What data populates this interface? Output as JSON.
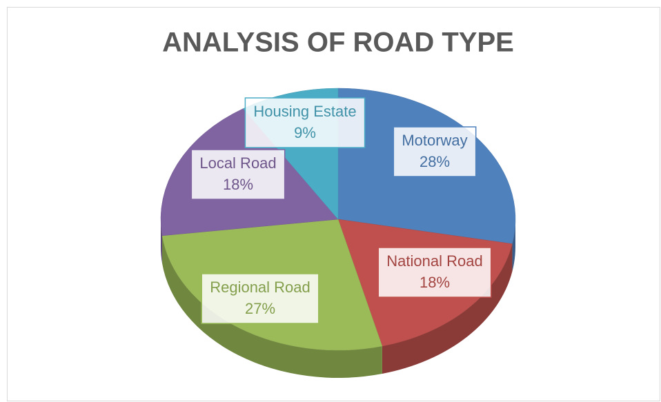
{
  "chart_data": {
    "type": "pie3d",
    "title": "ANALYSIS OF ROAD TYPE",
    "categories": [
      "Motorway",
      "National Road",
      "Regional Road",
      "Local Road",
      "Housing Estate"
    ],
    "values": [
      28,
      18,
      27,
      18,
      9
    ],
    "value_labels": [
      "28%",
      "18%",
      "27%",
      "18%",
      "9%"
    ],
    "colors": [
      "#4f81bd",
      "#c0504d",
      "#9bbb59",
      "#8064a2",
      "#4bacc6"
    ]
  }
}
